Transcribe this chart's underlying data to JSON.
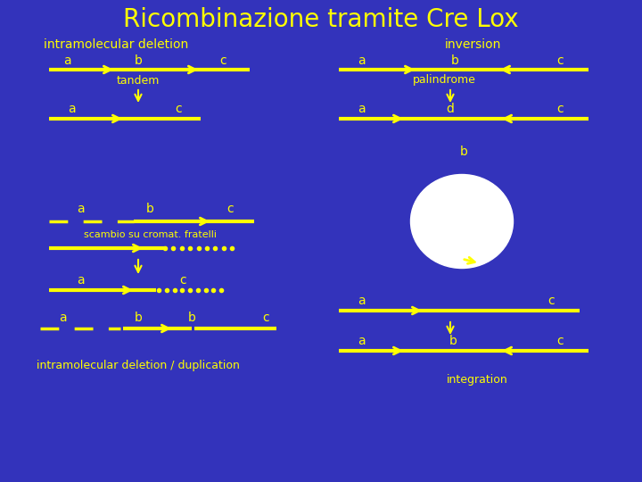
{
  "title": "Ricombinazione tramite Cre Lox",
  "bg_color": "#3333BB",
  "text_color": "#FFFF00",
  "arrow_color": "#FFFF00",
  "title_fontsize": 20,
  "label_fontsize": 10,
  "small_fontsize": 9,
  "sections": {
    "left_title": "intramolecular deletion",
    "right_title": "inversion",
    "left_bottom": "intramolecular deletion / duplication",
    "right_bottom": "integration"
  }
}
